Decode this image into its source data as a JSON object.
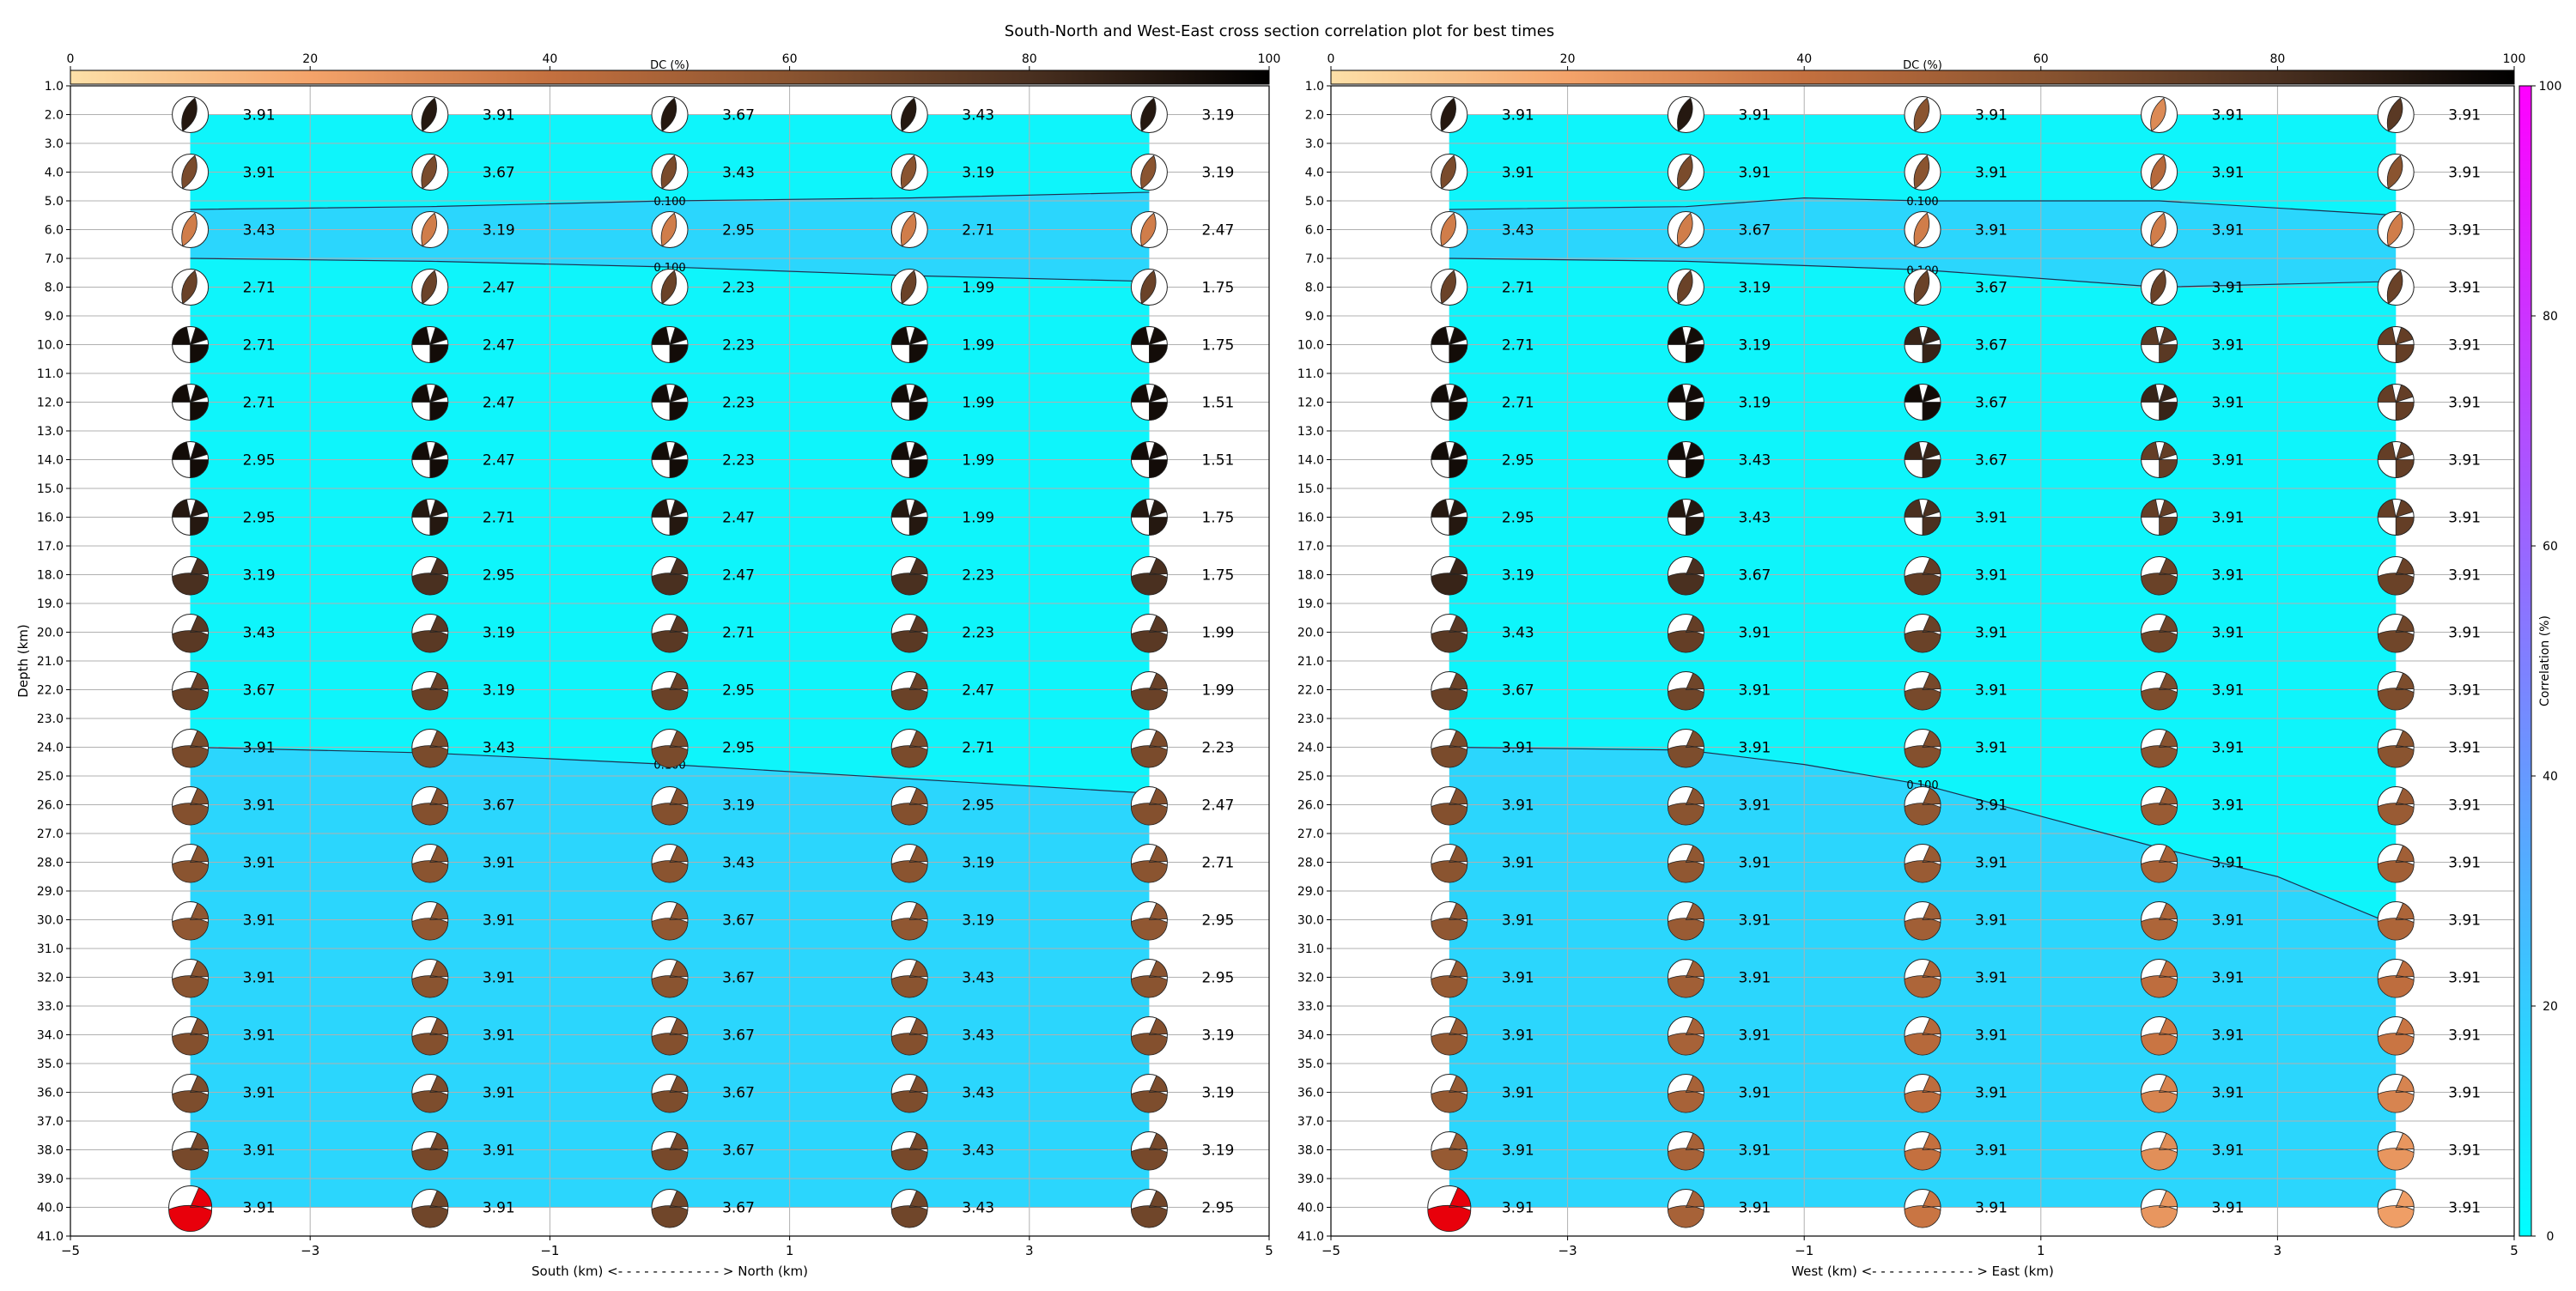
{
  "figure": {
    "title": "South-North and West-East cross section correlation plot for best times"
  },
  "colors": {
    "corr_low": "#00ffff",
    "corr_high": "#ff00ff",
    "fill_band_low": "#0ef5fb",
    "fill_band_high": "#2bd6fd",
    "mag_red": "#e8000b",
    "dc_cmap": [
      "#fde0a8",
      "#f4a36a",
      "#c4703f",
      "#8a5430",
      "#4a3020",
      "#000000"
    ]
  },
  "dc_colorbar": {
    "label": "DC (%)",
    "ticks": [
      "0",
      "20",
      "40",
      "60",
      "80",
      "100"
    ],
    "range": [
      0,
      100
    ]
  },
  "corr_colorbar": {
    "label": "Correlation (%)",
    "ticks": [
      "0",
      "20",
      "40",
      "60",
      "80",
      "100"
    ],
    "range": [
      0,
      100
    ]
  },
  "chart_data": [
    {
      "type": "scatter",
      "panel": "south-north",
      "xlabel": "South (km) <- - - - - - - - - - - - > North (km)",
      "ylabel": "Depth (km)",
      "xlim": [
        -5,
        5
      ],
      "ylim": [
        41,
        1
      ],
      "x_ticks": [
        "−5",
        "−3",
        "−1",
        "1",
        "3",
        "5"
      ],
      "y_ticks": [
        "1.0",
        "2.0",
        "3.0",
        "4.0",
        "5.0",
        "6.0",
        "7.0",
        "8.0",
        "9.0",
        "10.0",
        "11.0",
        "12.0",
        "13.0",
        "14.0",
        "15.0",
        "16.0",
        "17.0",
        "18.0",
        "19.0",
        "20.0",
        "21.0",
        "22.0",
        "23.0",
        "24.0",
        "25.0",
        "26.0",
        "27.0",
        "28.0",
        "29.0",
        "30.0",
        "31.0",
        "32.0",
        "33.0",
        "34.0",
        "35.0",
        "36.0",
        "37.0",
        "38.0",
        "39.0",
        "40.0",
        "41.0"
      ],
      "grid": true,
      "x": [
        -4,
        -2,
        0,
        2,
        4
      ],
      "depths": [
        2,
        4,
        6,
        8,
        10,
        12,
        14,
        16,
        18,
        20,
        22,
        24,
        26,
        28,
        30,
        32,
        34,
        36,
        38,
        40
      ],
      "magnitudes": [
        [
          "3.91",
          "3.91",
          "3.67",
          "3.43",
          "3.19"
        ],
        [
          "3.91",
          "3.67",
          "3.43",
          "3.19",
          "3.19"
        ],
        [
          "3.43",
          "3.19",
          "2.95",
          "2.71",
          "2.47"
        ],
        [
          "2.71",
          "2.47",
          "2.23",
          "1.99",
          "1.75"
        ],
        [
          "2.71",
          "2.47",
          "2.23",
          "1.99",
          "1.75"
        ],
        [
          "2.71",
          "2.47",
          "2.23",
          "1.99",
          "1.51"
        ],
        [
          "2.95",
          "2.47",
          "2.23",
          "1.99",
          "1.51"
        ],
        [
          "2.95",
          "2.71",
          "2.47",
          "1.99",
          "1.75"
        ],
        [
          "3.19",
          "2.95",
          "2.47",
          "2.23",
          "1.75"
        ],
        [
          "3.43",
          "3.19",
          "2.71",
          "2.23",
          "1.99"
        ],
        [
          "3.67",
          "3.19",
          "2.95",
          "2.47",
          "1.99"
        ],
        [
          "3.91",
          "3.43",
          "2.95",
          "2.71",
          "2.23"
        ],
        [
          "3.91",
          "3.67",
          "3.19",
          "2.95",
          "2.47"
        ],
        [
          "3.91",
          "3.91",
          "3.43",
          "3.19",
          "2.71"
        ],
        [
          "3.91",
          "3.91",
          "3.67",
          "3.19",
          "2.95"
        ],
        [
          "3.91",
          "3.91",
          "3.67",
          "3.43",
          "2.95"
        ],
        [
          "3.91",
          "3.91",
          "3.67",
          "3.43",
          "3.19"
        ],
        [
          "3.91",
          "3.91",
          "3.67",
          "3.43",
          "3.19"
        ],
        [
          "3.91",
          "3.91",
          "3.67",
          "3.43",
          "3.19"
        ],
        [
          "3.91",
          "3.91",
          "3.67",
          "3.43",
          "2.95"
        ]
      ],
      "dc_percent": [
        [
          90,
          90,
          90,
          90,
          90
        ],
        [
          65,
          65,
          65,
          60,
          60
        ],
        [
          35,
          35,
          35,
          35,
          35
        ],
        [
          70,
          70,
          70,
          70,
          70
        ],
        [
          95,
          95,
          95,
          95,
          95
        ],
        [
          95,
          95,
          95,
          95,
          95
        ],
        [
          95,
          95,
          95,
          95,
          95
        ],
        [
          90,
          90,
          90,
          90,
          90
        ],
        [
          80,
          80,
          80,
          80,
          80
        ],
        [
          75,
          75,
          75,
          75,
          75
        ],
        [
          70,
          70,
          70,
          70,
          70
        ],
        [
          65,
          65,
          65,
          65,
          65
        ],
        [
          62,
          62,
          62,
          62,
          62
        ],
        [
          60,
          60,
          60,
          60,
          60
        ],
        [
          58,
          58,
          58,
          58,
          58
        ],
        [
          60,
          60,
          60,
          60,
          60
        ],
        [
          62,
          62,
          62,
          62,
          62
        ],
        [
          64,
          64,
          64,
          64,
          64
        ],
        [
          66,
          66,
          66,
          66,
          66
        ],
        [
          0,
          68,
          68,
          68,
          68
        ]
      ],
      "highlight_red": {
        "x": -4,
        "depth": 40
      },
      "contour_label": "0.100",
      "contours": [
        {
          "x": [
            -4,
            -2,
            0,
            2,
            4
          ],
          "depth": [
            5.3,
            5.2,
            5.0,
            4.9,
            4.7
          ]
        },
        {
          "x": [
            -4,
            -2,
            0,
            2,
            4
          ],
          "depth": [
            7.0,
            7.1,
            7.3,
            7.6,
            7.8
          ]
        },
        {
          "x": [
            -4,
            -2,
            0,
            2,
            4
          ],
          "depth": [
            24.0,
            24.2,
            24.6,
            25.1,
            25.6
          ]
        }
      ],
      "contour_label_x": [
        0,
        0,
        0
      ]
    },
    {
      "type": "scatter",
      "panel": "west-east",
      "xlabel": "West (km) <- - - - - - - - - - - - > East (km)",
      "ylabel": "",
      "xlim": [
        -5,
        5
      ],
      "ylim": [
        41,
        1
      ],
      "x_ticks": [
        "−5",
        "−3",
        "−1",
        "1",
        "3",
        "5"
      ],
      "y_ticks": [
        "1.0",
        "2.0",
        "3.0",
        "4.0",
        "5.0",
        "6.0",
        "7.0",
        "8.0",
        "9.0",
        "10.0",
        "11.0",
        "12.0",
        "13.0",
        "14.0",
        "15.0",
        "16.0",
        "17.0",
        "18.0",
        "19.0",
        "20.0",
        "21.0",
        "22.0",
        "23.0",
        "24.0",
        "25.0",
        "26.0",
        "27.0",
        "28.0",
        "29.0",
        "30.0",
        "31.0",
        "32.0",
        "33.0",
        "34.0",
        "35.0",
        "36.0",
        "37.0",
        "38.0",
        "39.0",
        "40.0",
        "41.0"
      ],
      "grid": true,
      "x": [
        -4,
        -2,
        0,
        2,
        4
      ],
      "depths": [
        2,
        4,
        6,
        8,
        10,
        12,
        14,
        16,
        18,
        20,
        22,
        24,
        26,
        28,
        30,
        32,
        34,
        36,
        38,
        40
      ],
      "magnitudes": [
        [
          "3.91",
          "3.91",
          "3.91",
          "3.91",
          "3.91"
        ],
        [
          "3.91",
          "3.91",
          "3.91",
          "3.91",
          "3.91"
        ],
        [
          "3.43",
          "3.67",
          "3.91",
          "3.91",
          "3.91"
        ],
        [
          "2.71",
          "3.19",
          "3.67",
          "3.91",
          "3.91"
        ],
        [
          "2.71",
          "3.19",
          "3.67",
          "3.91",
          "3.91"
        ],
        [
          "2.71",
          "3.19",
          "3.67",
          "3.91",
          "3.91"
        ],
        [
          "2.95",
          "3.43",
          "3.67",
          "3.91",
          "3.91"
        ],
        [
          "2.95",
          "3.43",
          "3.91",
          "3.91",
          "3.91"
        ],
        [
          "3.19",
          "3.67",
          "3.91",
          "3.91",
          "3.91"
        ],
        [
          "3.43",
          "3.91",
          "3.91",
          "3.91",
          "3.91"
        ],
        [
          "3.67",
          "3.91",
          "3.91",
          "3.91",
          "3.91"
        ],
        [
          "3.91",
          "3.91",
          "3.91",
          "3.91",
          "3.91"
        ],
        [
          "3.91",
          "3.91",
          "3.91",
          "3.91",
          "3.91"
        ],
        [
          "3.91",
          "3.91",
          "3.91",
          "3.91",
          "3.91"
        ],
        [
          "3.91",
          "3.91",
          "3.91",
          "3.91",
          "3.91"
        ],
        [
          "3.91",
          "3.91",
          "3.91",
          "3.91",
          "3.91"
        ],
        [
          "3.91",
          "3.91",
          "3.91",
          "3.91",
          "3.91"
        ],
        [
          "3.91",
          "3.91",
          "3.91",
          "3.91",
          "3.91"
        ],
        [
          "3.91",
          "3.91",
          "3.91",
          "3.91",
          "3.91"
        ],
        [
          "3.91",
          "3.91",
          "3.91",
          "3.91",
          "3.91"
        ]
      ],
      "dc_percent": [
        [
          90,
          90,
          60,
          30,
          75
        ],
        [
          65,
          65,
          60,
          45,
          60
        ],
        [
          35,
          35,
          35,
          35,
          35
        ],
        [
          70,
          70,
          70,
          70,
          70
        ],
        [
          95,
          95,
          85,
          75,
          72
        ],
        [
          95,
          95,
          95,
          85,
          72
        ],
        [
          95,
          95,
          85,
          72,
          72
        ],
        [
          90,
          90,
          80,
          72,
          72
        ],
        [
          85,
          80,
          72,
          70,
          70
        ],
        [
          75,
          72,
          70,
          68,
          68
        ],
        [
          70,
          68,
          66,
          64,
          64
        ],
        [
          65,
          64,
          62,
          60,
          60
        ],
        [
          62,
          60,
          58,
          55,
          55
        ],
        [
          60,
          58,
          55,
          50,
          52
        ],
        [
          58,
          55,
          52,
          48,
          48
        ],
        [
          56,
          52,
          48,
          42,
          42
        ],
        [
          56,
          50,
          45,
          38,
          38
        ],
        [
          56,
          50,
          42,
          32,
          32
        ],
        [
          56,
          50,
          40,
          28,
          25
        ],
        [
          0,
          50,
          38,
          25,
          22
        ]
      ],
      "highlight_red": {
        "x": -4,
        "depth": 40
      },
      "contour_label": "0.100",
      "contours": [
        {
          "x": [
            -4,
            -2,
            -1,
            0,
            2,
            4
          ],
          "depth": [
            5.3,
            5.2,
            4.9,
            5.0,
            5.0,
            5.5
          ]
        },
        {
          "x": [
            -4,
            -2,
            0,
            2,
            4
          ],
          "depth": [
            7.0,
            7.1,
            7.4,
            8.0,
            7.8
          ]
        },
        {
          "x": [
            -4,
            -2,
            -1,
            0,
            1,
            2,
            3,
            4
          ],
          "depth": [
            24.0,
            24.1,
            24.6,
            25.3,
            26.4,
            27.5,
            28.5,
            30.2
          ]
        }
      ],
      "contour_label_x": [
        0,
        0,
        0
      ]
    }
  ]
}
